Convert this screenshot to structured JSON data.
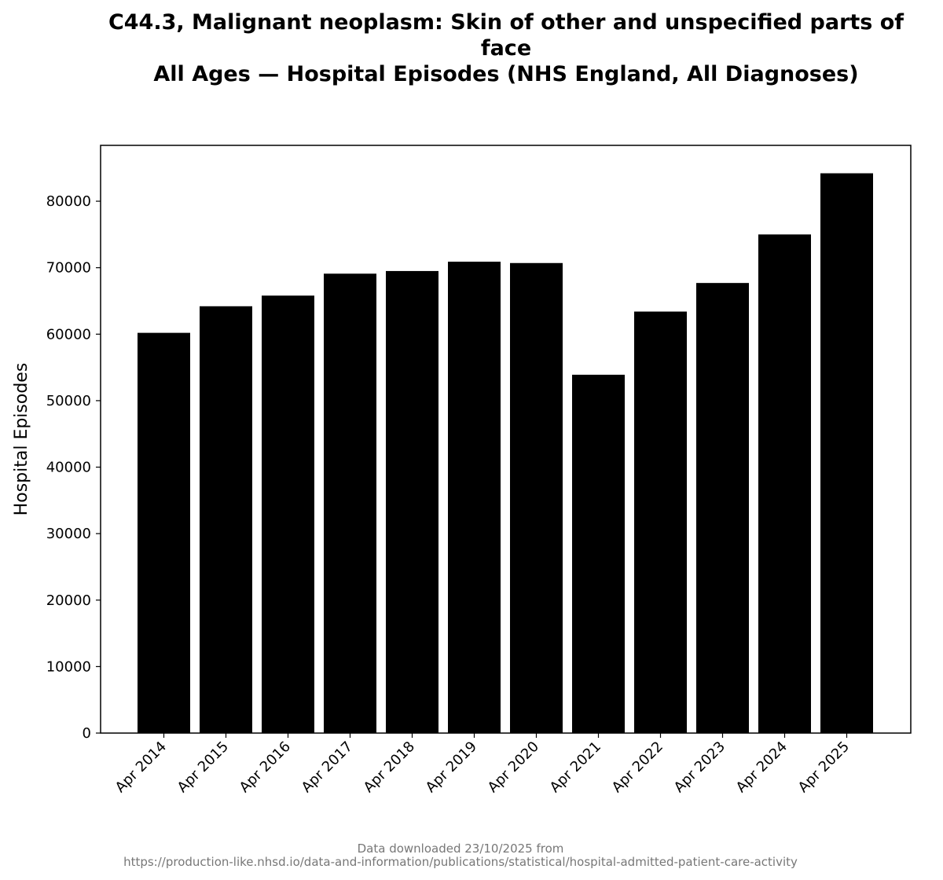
{
  "chart_data": {
    "type": "bar",
    "title_lines": [
      "C44.3, Malignant neoplasm: Skin of other and unspecified parts of",
      "face",
      "All Ages — Hospital Episodes (NHS England, All Diagnoses)"
    ],
    "xlabel": "",
    "ylabel": "Hospital Episodes",
    "categories": [
      "Apr 2014",
      "Apr 2015",
      "Apr 2016",
      "Apr 2017",
      "Apr 2018",
      "Apr 2019",
      "Apr 2020",
      "Apr 2021",
      "Apr 2022",
      "Apr 2023",
      "Apr 2024",
      "Apr 2025"
    ],
    "values": [
      60200,
      64200,
      65800,
      69100,
      69500,
      70900,
      70700,
      53900,
      63400,
      67700,
      75000,
      84200
    ],
    "ylim": [
      0,
      88400
    ],
    "yticks": [
      0,
      10000,
      20000,
      30000,
      40000,
      50000,
      60000,
      70000,
      80000
    ],
    "bar_color": "#000000",
    "grid": false,
    "legend": "none"
  },
  "footer": {
    "line1": "Data downloaded 23/10/2025 from",
    "line2": "https://production-like.nhsd.io/data-and-information/publications/statistical/hospital-admitted-patient-care-activity"
  }
}
